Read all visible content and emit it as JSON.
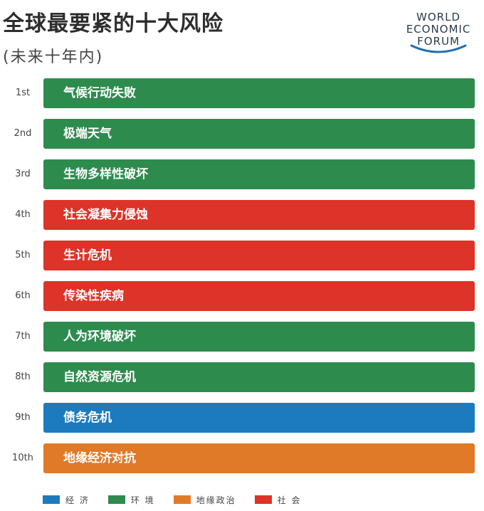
{
  "title": "全球最要紧的十大风险",
  "subtitle": "(未来十年内)",
  "logo": {
    "lines": [
      "WORLD",
      "ECONOMIC",
      "FORUM"
    ]
  },
  "colors": {
    "economic": "#1c7bbf",
    "environmental": "#2e8b4e",
    "geopolitical": "#e07a28",
    "societal": "#dd3328"
  },
  "legend": [
    {
      "label": "经 济",
      "category": "economic"
    },
    {
      "label": "环 境",
      "category": "environmental"
    },
    {
      "label": "地缘政治",
      "category": "geopolitical"
    },
    {
      "label": "社 会",
      "category": "societal"
    }
  ],
  "chart_data": {
    "type": "table",
    "title": "全球最要紧的十大风险",
    "subtitle": "(未来十年内)",
    "rows": [
      {
        "rank": "1st",
        "risk": "气候行动失败",
        "category": "environmental"
      },
      {
        "rank": "2nd",
        "risk": "极端天气",
        "category": "environmental"
      },
      {
        "rank": "3rd",
        "risk": "生物多样性破坏",
        "category": "environmental"
      },
      {
        "rank": "4th",
        "risk": "社会凝集力侵蚀",
        "category": "societal"
      },
      {
        "rank": "5th",
        "risk": "生计危机",
        "category": "societal"
      },
      {
        "rank": "6th",
        "risk": "传染性疾病",
        "category": "societal"
      },
      {
        "rank": "7th",
        "risk": "人为环境破坏",
        "category": "environmental"
      },
      {
        "rank": "8th",
        "risk": "自然资源危机",
        "category": "environmental"
      },
      {
        "rank": "9th",
        "risk": "债务危机",
        "category": "economic"
      },
      {
        "rank": "10th",
        "risk": "地缘经济对抗",
        "category": "geopolitical"
      }
    ]
  }
}
